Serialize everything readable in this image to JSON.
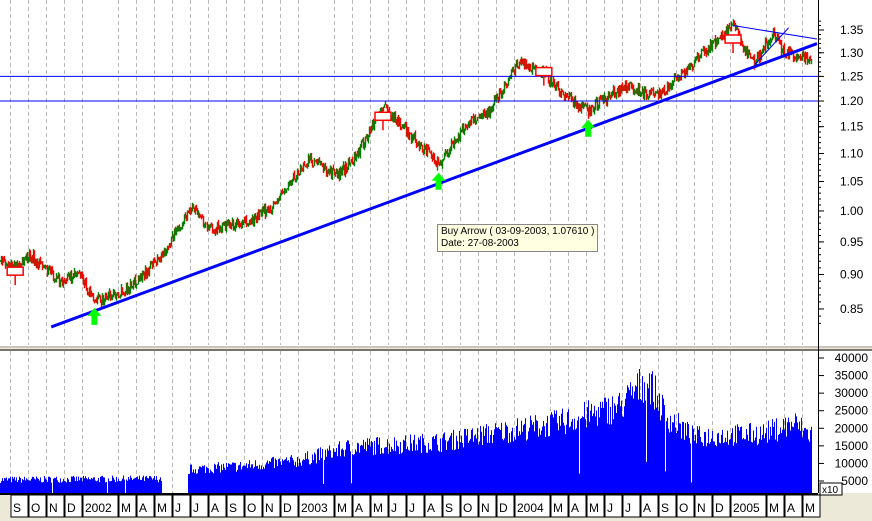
{
  "chart_data": [
    {
      "type": "candlestick",
      "scale": "log",
      "y_ticks": [
        "1.35",
        "1.30",
        "1.25",
        "1.20",
        "1.15",
        "1.10",
        "1.05",
        "1.00",
        "0.95",
        "0.90",
        "0.85"
      ],
      "ylim": [
        0.82,
        1.38
      ],
      "grid": "vertical dashed at month boundaries",
      "price_path": [
        [
          "2001-08-14",
          0.92
        ],
        [
          "2001-09-10",
          0.91
        ],
        [
          "2001-10-05",
          0.93
        ],
        [
          "2001-11-25",
          0.89
        ],
        [
          "2001-12-28",
          0.9
        ],
        [
          "2002-01-22",
          0.86
        ],
        [
          "2002-03-20",
          0.88
        ],
        [
          "2002-05-10",
          0.92
        ],
        [
          "2002-07-08",
          1.01
        ],
        [
          "2002-08-03",
          0.97
        ],
        [
          "2002-10-10",
          0.98
        ],
        [
          "2002-11-22",
          1.01
        ],
        [
          "2003-01-20",
          1.09
        ],
        [
          "2003-03-10",
          1.06
        ],
        [
          "2003-04-13",
          1.1
        ],
        [
          "2003-05-25",
          1.19
        ],
        [
          "2003-07-06",
          1.14
        ],
        [
          "2003-08-27",
          1.08
        ],
        [
          "2003-10-18",
          1.16
        ],
        [
          "2003-11-21",
          1.18
        ],
        [
          "2004-01-10",
          1.28
        ],
        [
          "2004-02-21",
          1.26
        ],
        [
          "2004-03-18",
          1.22
        ],
        [
          "2004-05-06",
          1.18
        ],
        [
          "2004-07-06",
          1.23
        ],
        [
          "2004-09-03",
          1.21
        ],
        [
          "2004-10-24",
          1.27
        ],
        [
          "2004-12-13",
          1.33
        ],
        [
          "2005-01-06",
          1.36
        ],
        [
          "2005-01-25",
          1.31
        ],
        [
          "2005-02-12",
          1.28
        ],
        [
          "2005-03-15",
          1.34
        ],
        [
          "2005-04-03",
          1.3
        ],
        [
          "2005-05-13",
          1.29
        ]
      ],
      "up_color": "#008000",
      "down_color": "#ff0000",
      "horizontal_lines": [
        1.25,
        1.2
      ],
      "trendlines": [
        {
          "from": [
            "2001-11-10",
            0.825
          ],
          "to": [
            "2005-05-28",
            1.32
          ],
          "color": "#0000ff",
          "weight": "thick"
        },
        {
          "from": [
            "2005-01-06",
            1.36
          ],
          "to": [
            "2005-05-28",
            1.33
          ],
          "color": "#0000ff",
          "weight": "thin"
        },
        {
          "from": [
            "2005-02-12",
            1.275
          ],
          "to": [
            "2005-04-10",
            1.355
          ],
          "color": "#0000ff",
          "weight": "thin"
        }
      ],
      "buy_arrows": [
        [
          "2002-01-22",
          0.86
        ],
        [
          "2003-08-27",
          1.076
        ],
        [
          "2004-05-06",
          1.175
        ]
      ],
      "sell_markers": [
        [
          "2001-09-10",
          0.905
        ],
        [
          "2003-05-25",
          1.17
        ],
        [
          "2004-02-21",
          1.26
        ],
        [
          "2005-01-06",
          1.33
        ]
      ],
      "buy_color": "#00ff00",
      "sell_color": "#ff0000",
      "tooltip": {
        "line1": "Buy Arrow ( 03-09-2003, 1.07610 )",
        "line2": "Date: 27-08-2003"
      }
    },
    {
      "type": "bar",
      "y_ticks": [
        "40000",
        "35000",
        "30000",
        "25000",
        "20000",
        "15000",
        "10000",
        "5000"
      ],
      "multiplier_label": "x10",
      "ylim": [
        0,
        41000
      ],
      "color": "#0000ff",
      "volume_path": [
        [
          "2001-08-14",
          5500
        ],
        [
          "2002-05-25",
          5800
        ],
        [
          "2002-05-31",
          600
        ],
        [
          "2002-06-28",
          600
        ],
        [
          "2002-07-01",
          8500
        ],
        [
          "2002-09-30",
          9500
        ],
        [
          "2002-12-31",
          11000
        ],
        [
          "2003-03-31",
          15000
        ],
        [
          "2003-08-31",
          16500
        ],
        [
          "2003-12-31",
          20000
        ],
        [
          "2004-03-15",
          22000
        ],
        [
          "2004-06-30",
          27000
        ],
        [
          "2004-08-15",
          35000
        ],
        [
          "2004-09-15",
          24000
        ],
        [
          "2004-10-31",
          18000
        ],
        [
          "2005-02-28",
          19000
        ],
        [
          "2005-04-20",
          22000
        ],
        [
          "2005-05-13",
          19000
        ]
      ]
    }
  ],
  "x_axis": {
    "labels": [
      "S",
      "O",
      "N",
      "D",
      "2002",
      "M",
      "A",
      "M",
      "J",
      "J",
      "A",
      "S",
      "O",
      "N",
      "D",
      "2003",
      "M",
      "A",
      "M",
      "J",
      "J",
      "A",
      "S",
      "O",
      "N",
      "D",
      "2004",
      "M",
      "A",
      "M",
      "J",
      "J",
      "A",
      "S",
      "O",
      "N",
      "D",
      "2005",
      "M",
      "A",
      "M"
    ]
  }
}
